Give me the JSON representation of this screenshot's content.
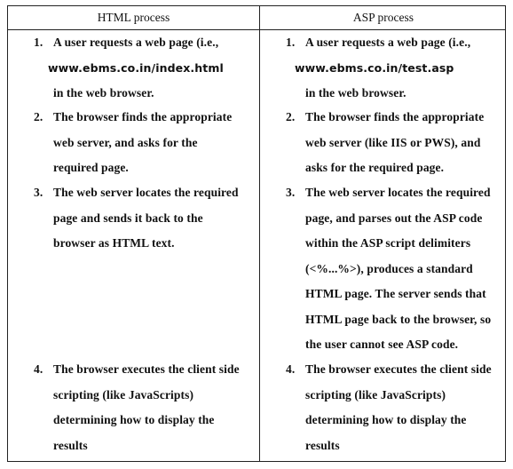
{
  "headers": {
    "left": "HTML process",
    "right": "ASP process"
  },
  "html_process": [
    {
      "number": "1.",
      "lines": [
        "A user requests a web page (i.e.,",
        "www.ebms.co.in/index.html",
        "in the web browser."
      ]
    },
    {
      "number": "2.",
      "lines": [
        "The browser finds the appropriate",
        "web server, and asks for the",
        "required page."
      ]
    },
    {
      "number": "3.",
      "lines": [
        "The web server locates the required",
        "page and sends it back to the",
        "browser as HTML text."
      ]
    },
    {
      "number": "4.",
      "lines": [
        "The browser executes the client side",
        "scripting (like JavaScripts)",
        "determining how to display the",
        "results"
      ]
    }
  ],
  "asp_process": [
    {
      "number": "1.",
      "lines": [
        "A user requests a web page (i.e.,",
        "www.ebms.co.in/test.asp",
        "in the web browser."
      ]
    },
    {
      "number": "2.",
      "lines": [
        "The browser finds the appropriate",
        "web server (like IIS or PWS), and",
        "asks for the required page."
      ]
    },
    {
      "number": "3.",
      "lines": [
        "The web server locates the required",
        "page, and parses out the ASP code",
        "within the ASP script delimiters",
        "(<%...%>), produces a standard",
        "HTML page. The server sends that",
        "HTML page back to the browser, so",
        "the user cannot see ASP code."
      ]
    },
    {
      "number": "4.",
      "lines": [
        "The browser executes the client side",
        "scripting (like JavaScripts)",
        "determining how to display the",
        "results"
      ]
    }
  ]
}
